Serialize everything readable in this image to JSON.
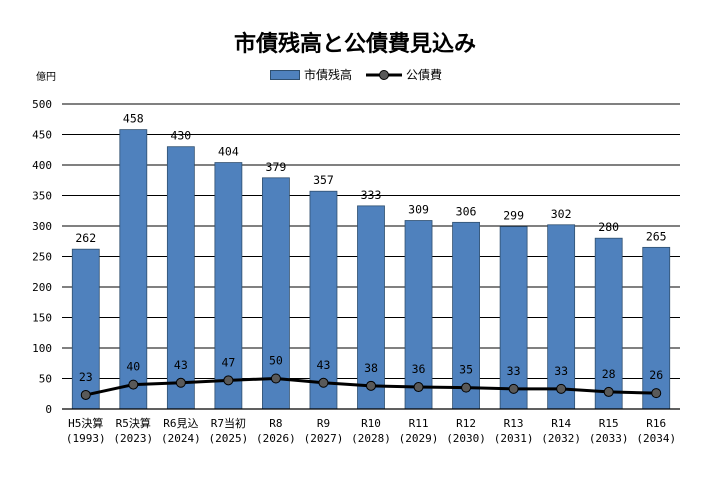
{
  "chart_data": {
    "type": "bar",
    "title": "市債残高と公債費見込み",
    "y_unit": "億円",
    "ylim": [
      0,
      500
    ],
    "yticks": [
      0,
      50,
      100,
      150,
      200,
      250,
      300,
      350,
      400,
      450,
      500
    ],
    "grid": true,
    "legend": "top",
    "categories": [
      [
        "H5決算",
        "(1993)"
      ],
      [
        "R5決算",
        "(2023)"
      ],
      [
        "R6見込",
        "(2024)"
      ],
      [
        "R7当初",
        "(2025)"
      ],
      [
        "R8",
        "(2026)"
      ],
      [
        "R9",
        "(2027)"
      ],
      [
        "R10",
        "(2028)"
      ],
      [
        "R11",
        "(2029)"
      ],
      [
        "R12",
        "(2030)"
      ],
      [
        "R13",
        "(2031)"
      ],
      [
        "R14",
        "(2032)"
      ],
      [
        "R15",
        "(2033)"
      ],
      [
        "R16",
        "(2034)"
      ]
    ],
    "series": [
      {
        "name": "市債残高",
        "type": "bar",
        "color": "#4f81bd",
        "values": [
          262,
          458,
          430,
          404,
          379,
          357,
          333,
          309,
          306,
          299,
          302,
          280,
          265
        ]
      },
      {
        "name": "公債費",
        "type": "line",
        "color": "#000000",
        "marker_color": "#595959",
        "values": [
          23,
          40,
          43,
          47,
          50,
          43,
          38,
          36,
          35,
          33,
          33,
          28,
          26
        ]
      }
    ]
  }
}
